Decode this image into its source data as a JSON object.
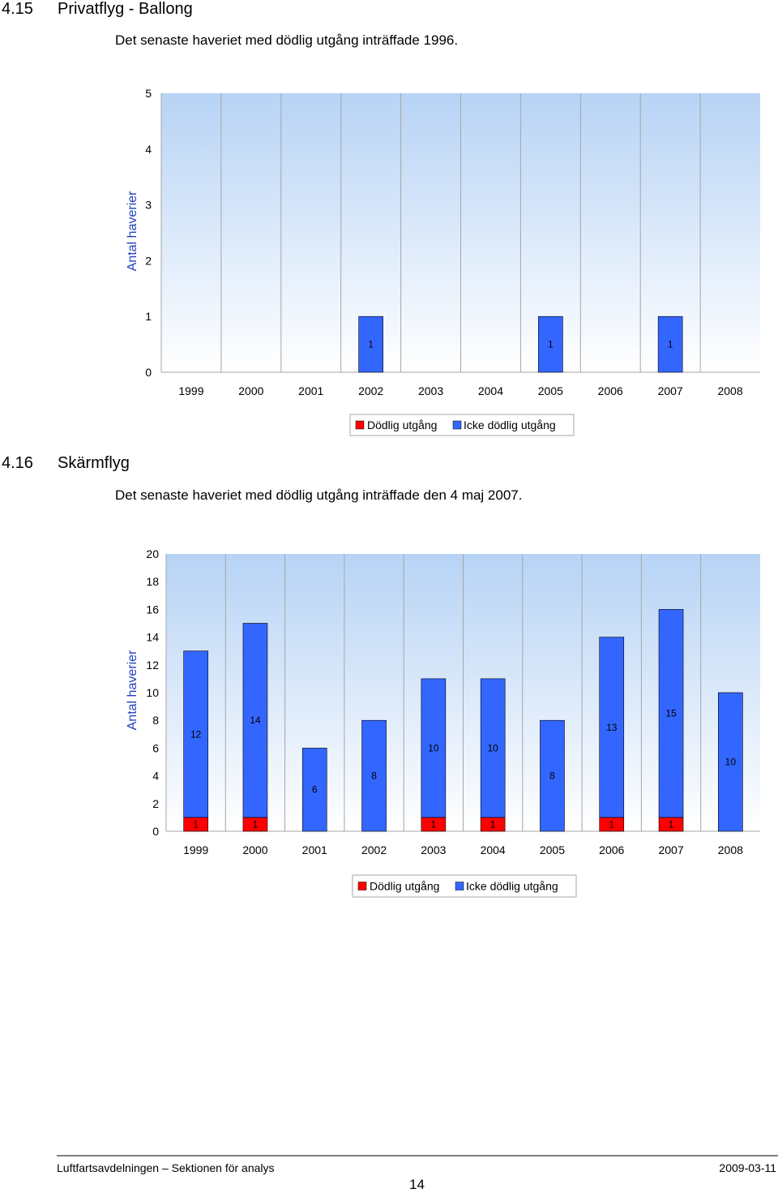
{
  "sections": [
    {
      "number": "4.15",
      "title": "Privatflyg - Ballong",
      "note": "Det senaste haveriet med dödlig utgång inträffade 1996."
    },
    {
      "number": "4.16",
      "title": "Skärmflyg",
      "note": "Det senaste haveriet med dödlig utgång inträffade den 4 maj 2007."
    }
  ],
  "chart_data": [
    {
      "type": "bar",
      "stacked": true,
      "categories": [
        "1999",
        "2000",
        "2001",
        "2002",
        "2003",
        "2004",
        "2005",
        "2006",
        "2007",
        "2008"
      ],
      "series": [
        {
          "name": "Dödlig utgång",
          "color": "#ff0000",
          "values": [
            0,
            0,
            0,
            0,
            0,
            0,
            0,
            0,
            0,
            0
          ]
        },
        {
          "name": "Icke dödlig utgång",
          "color": "#3366ff",
          "values": [
            0,
            0,
            0,
            1,
            0,
            0,
            1,
            0,
            1,
            0
          ]
        }
      ],
      "ylabel": "Antal haverier",
      "ylim": [
        0,
        5
      ],
      "yticks": [
        "0",
        "1",
        "2",
        "3",
        "4",
        "5"
      ],
      "grid": "vertical",
      "legend": "bottom"
    },
    {
      "type": "bar",
      "stacked": true,
      "categories": [
        "1999",
        "2000",
        "2001",
        "2002",
        "2003",
        "2004",
        "2005",
        "2006",
        "2007",
        "2008"
      ],
      "series": [
        {
          "name": "Dödlig utgång",
          "color": "#ff0000",
          "values": [
            1,
            1,
            0,
            0,
            1,
            1,
            0,
            1,
            1,
            0
          ]
        },
        {
          "name": "Icke dödlig utgång",
          "color": "#3366ff",
          "values": [
            12,
            14,
            6,
            8,
            10,
            10,
            8,
            13,
            15,
            10
          ]
        }
      ],
      "ylabel": "Antal haverier",
      "ylim": [
        0,
        20
      ],
      "yticks": [
        "0",
        "2",
        "4",
        "6",
        "8",
        "10",
        "12",
        "14",
        "16",
        "18",
        "20"
      ],
      "grid": "vertical",
      "legend": "bottom"
    }
  ],
  "footer": {
    "left": "Luftfartsavdelningen – Sektionen för analys",
    "right": "2009-03-11",
    "page_number": "14"
  }
}
